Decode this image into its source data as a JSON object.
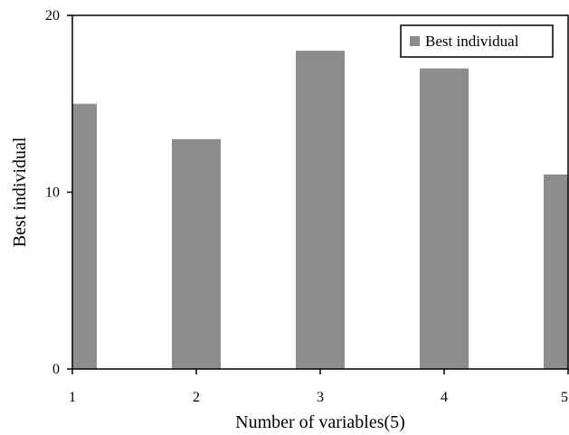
{
  "chart_data": {
    "type": "bar",
    "categories": [
      "1",
      "2",
      "3",
      "4",
      "5"
    ],
    "series": [
      {
        "name": "Best individual",
        "values": [
          15,
          13,
          18,
          17,
          11
        ]
      }
    ],
    "xlabel": "Number of variables(5)",
    "ylabel": "Best individual",
    "ylim": [
      0,
      20
    ],
    "yticks": [
      "0",
      "10",
      "20"
    ],
    "grid": false,
    "legend_position": "top-right",
    "colors": {
      "bar": "#8c8c8c",
      "axis": "#000000"
    }
  }
}
